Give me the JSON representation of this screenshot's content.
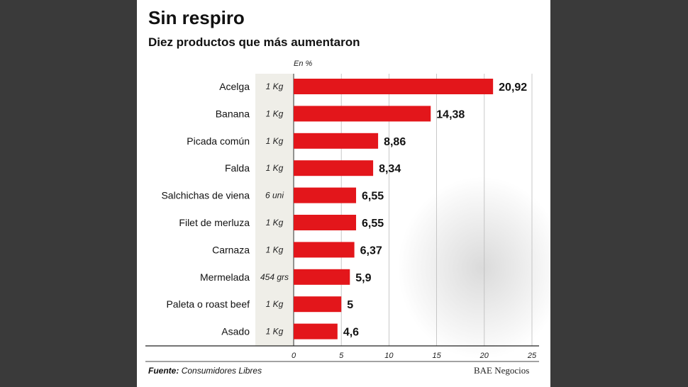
{
  "chart_data": {
    "type": "bar",
    "orientation": "horizontal",
    "title": "Sin respiro",
    "subtitle": "Diez productos que más aumentaron",
    "unit_label": "En %",
    "categories": [
      "Acelga",
      "Banana",
      "Picada común",
      "Falda",
      "Salchichas de viena",
      "Filet de merluza",
      "Carnaza",
      "Mermelada",
      "Paleta o roast beef",
      "Asado"
    ],
    "quantities": [
      "1 Kg",
      "1 Kg",
      "1 Kg",
      "1 Kg",
      "6 uni",
      "1 Kg",
      "1 Kg",
      "454 grs",
      "1 Kg",
      "1 Kg"
    ],
    "values": [
      20.92,
      14.38,
      8.86,
      8.34,
      6.55,
      6.55,
      6.37,
      5.9,
      5,
      4.6
    ],
    "value_labels": [
      "20,92",
      "14,38",
      "8,86",
      "8,34",
      "6,55",
      "6,55",
      "6,37",
      "5,9",
      "5",
      "4,6"
    ],
    "xlim": [
      0,
      25
    ],
    "xticks": [
      0,
      5,
      10,
      15,
      20,
      25
    ],
    "grid": true,
    "bar_color": "#e3161b"
  },
  "footer": {
    "source_label": "Fuente:",
    "source_value": "Consumidores Libres",
    "brand": "BAE Negocios"
  }
}
